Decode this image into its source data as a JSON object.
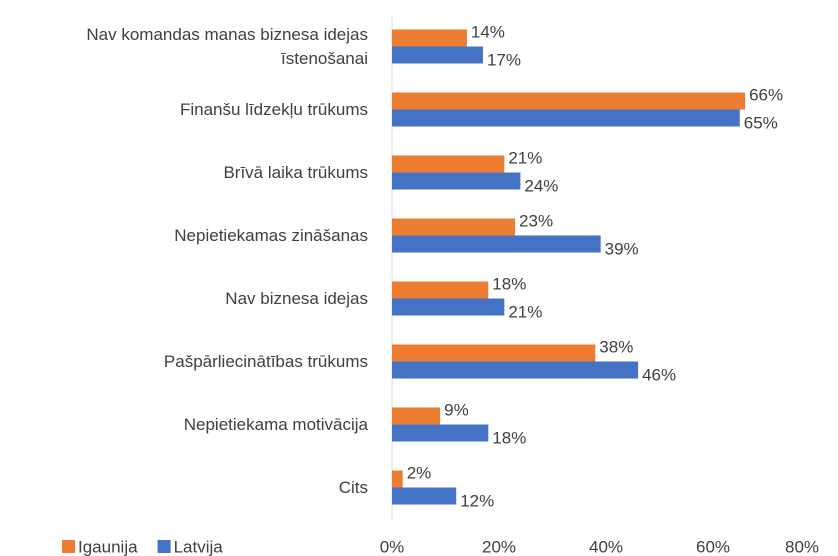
{
  "chart_data": {
    "type": "barh",
    "categories": [
      "Nav komandas manas biznesa idejas\nīstenošanai",
      "Finanšu līdzekļu trūkums",
      "Brīvā laika trūkums",
      "Nepietiekamas zināšanas",
      "Nav biznesa idejas",
      "Pašpārliecinātības trūkums",
      "Nepietiekama motivācija",
      "Cits"
    ],
    "series": [
      {
        "name": "Igaunija",
        "color": "#ed7d31",
        "values": [
          14,
          66,
          21,
          23,
          18,
          38,
          9,
          2
        ],
        "value_labels": [
          "14%",
          "66%",
          "21%",
          "23%",
          "18%",
          "38%",
          "9%",
          "2%"
        ]
      },
      {
        "name": "Latvija",
        "color": "#4472c4",
        "values": [
          17,
          65,
          24,
          39,
          21,
          46,
          18,
          12
        ],
        "value_labels": [
          "17%",
          "65%",
          "24%",
          "39%",
          "21%",
          "46%",
          "18%",
          "12%"
        ]
      }
    ],
    "xlim": [
      0,
      80
    ],
    "xticks": [
      {
        "value": 0,
        "label": "0%"
      },
      {
        "value": 20,
        "label": "20%"
      },
      {
        "value": 40,
        "label": "40%"
      },
      {
        "value": 60,
        "label": "60%"
      },
      {
        "value": 80,
        "label": "80%"
      }
    ],
    "legend": "bottom-left"
  }
}
